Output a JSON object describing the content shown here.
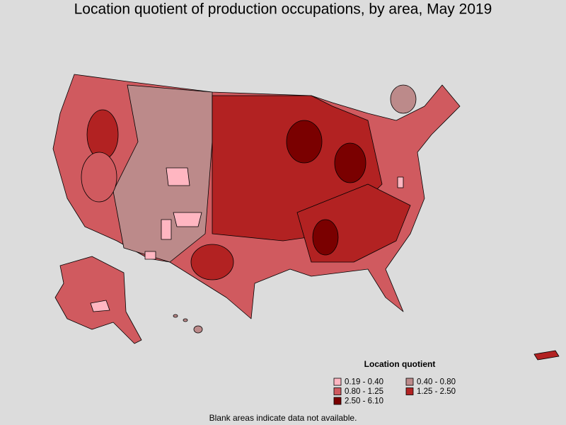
{
  "title": "Location quotient of production occupations, by area, May 2019",
  "legend": {
    "title": "Location quotient",
    "items": [
      {
        "label": "0.19 - 0.40",
        "color": "#ffb6c1"
      },
      {
        "label": "0.40 - 0.80",
        "color": "#bc8a8a"
      },
      {
        "label": "0.80 - 1.25",
        "color": "#d05a5f"
      },
      {
        "label": "1.25 - 2.50",
        "color": "#b22222"
      },
      {
        "label": "2.50 - 6.10",
        "color": "#7a0000"
      }
    ]
  },
  "footnote": "Blank areas indicate data not available."
}
